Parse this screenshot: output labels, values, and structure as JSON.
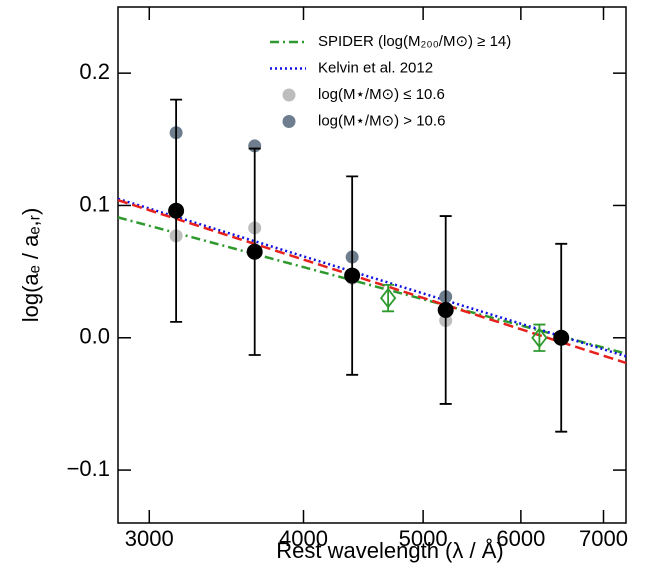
{
  "chart_data": {
    "type": "scatter",
    "x_label": "Rest wavelength (λ / Å)",
    "y_label": "log(aₑ / aₑ,ᵣ)",
    "log_x": true,
    "xlim": [
      2830,
      7300
    ],
    "ylim": [
      -0.14,
      0.25
    ],
    "xticks": [
      3000,
      4000,
      5000,
      6000,
      7000
    ],
    "yticks": [
      {
        "value": -0.1,
        "label": "−0.1"
      },
      {
        "value": 0,
        "label": "0.0"
      },
      {
        "value": 0.1,
        "label": "0.1"
      },
      {
        "value": 0.2,
        "label": "0.2"
      }
    ],
    "legend": "upper right",
    "series": [
      {
        "name": "SPIDER (log(M₂₀₀/M⊙) ≥ 14)",
        "type": "line",
        "style": "dashdot",
        "color": "#2e9a2e",
        "x": [
          2830,
          7300
        ],
        "values": [
          0.091,
          -0.012
        ]
      },
      {
        "name": "Kelvin et al. 2012",
        "type": "line",
        "style": "dotted",
        "color": "#1010e0",
        "x": [
          2830,
          7300
        ],
        "values": [
          0.105,
          -0.014
        ]
      },
      {
        "type": "line",
        "style": "dashed",
        "color": "#e8201c",
        "x": [
          2830,
          7300
        ],
        "values": [
          0.104,
          -0.019
        ]
      },
      {
        "name": "log(M⋆/M⊙) ≤ 10.6",
        "type": "scatter",
        "color": "#bdbdbd",
        "x": [
          3154,
          3652,
          4380,
          5215
        ],
        "values": [
          0.077,
          0.083,
          0.045,
          0.013
        ]
      },
      {
        "name": "log(M⋆/M⊙) > 10.6",
        "type": "scatter",
        "color": "#6e7e8e",
        "x": [
          3154,
          3652,
          4380,
          5215
        ],
        "values": [
          0.155,
          0.145,
          0.061,
          0.031
        ]
      },
      {
        "type": "errorbar",
        "marker": "circle",
        "color": "#000000",
        "x": [
          3154,
          3652,
          4380,
          5215,
          6469
        ],
        "values": [
          0.096,
          0.065,
          0.047,
          0.021,
          0
        ],
        "errors": [
          0.084,
          0.078,
          0.075,
          0.071,
          0.071
        ]
      },
      {
        "type": "errorbar",
        "marker": "diamond",
        "color": "#2e9a2e",
        "x": [
          4684,
          6211
        ],
        "values": [
          0.03,
          0.0
        ],
        "errors": [
          0.01,
          0.01
        ]
      }
    ]
  }
}
